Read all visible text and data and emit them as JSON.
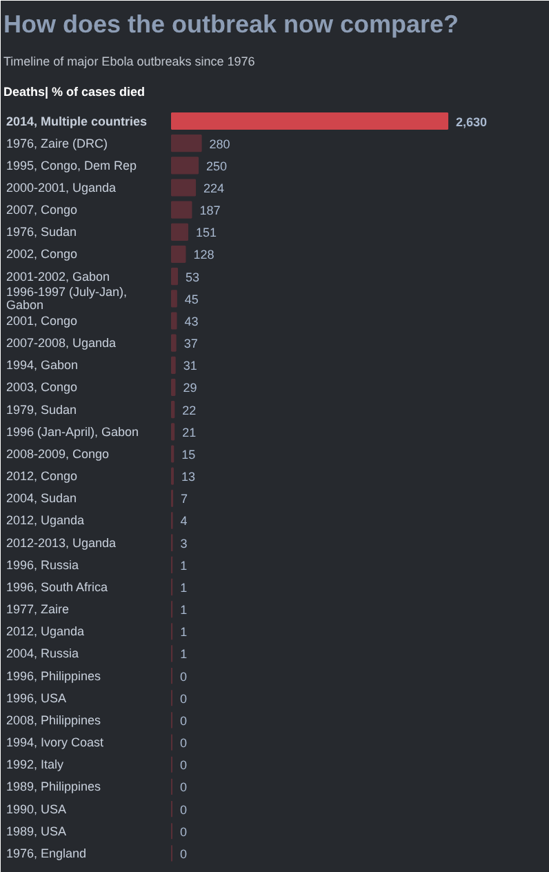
{
  "chart_data": {
    "type": "bar",
    "orientation": "horizontal",
    "title": "How does the outbreak now compare?",
    "subtitle": "Timeline of major Ebola outbreaks since 1976",
    "annotations": [
      "Deaths| % of cases died"
    ],
    "categories": [
      "2014, Multiple countries",
      "1976, Zaire (DRC)",
      "1995, Congo, Dem Rep",
      "2000-2001, Uganda",
      "2007, Congo",
      "1976, Sudan",
      "2002, Congo",
      "2001-2002, Gabon",
      "1996-1997 (July-Jan), Gabon",
      "2001, Congo",
      "2007-2008, Uganda",
      "1994, Gabon",
      "2003, Congo",
      "1979, Sudan",
      "1996 (Jan-April), Gabon",
      "2008-2009, Congo",
      "2012, Congo",
      "2004, Sudan",
      "2012, Uganda",
      "2012-2013, Uganda",
      "1996, Russia",
      "1996, South Africa",
      "1977, Zaire",
      "2012, Uganda",
      "2004, Russia",
      "1996, Philippines",
      "1996, USA",
      "2008, Philippines",
      "1994, Ivory Coast",
      "1992, Italy",
      "1989, Philippines",
      "1990, USA",
      "1989, USA",
      "1976, England"
    ],
    "values": [
      2630,
      280,
      250,
      224,
      187,
      151,
      128,
      53,
      45,
      43,
      37,
      31,
      29,
      22,
      21,
      15,
      13,
      7,
      4,
      3,
      1,
      1,
      1,
      1,
      1,
      0,
      0,
      0,
      0,
      0,
      0,
      0,
      0,
      0
    ],
    "colors": [
      "#d0454c",
      "#5a2f37",
      "#5a2f37",
      "#5a2f37",
      "#5a2f37",
      "#5a2f37",
      "#5a2f37",
      "#5a2f37",
      "#5a2f37",
      "#5a2f37",
      "#5a2f37",
      "#5a2f37",
      "#5a2f37",
      "#5a2f37",
      "#5a2f37",
      "#5a2f37",
      "#5a2f37",
      "#5a2f37",
      "#5a2f37",
      "#5a2f37",
      "#5a2f37",
      "#5a2f37",
      "#5a2f37",
      "#5a2f37",
      "#5a2f37",
      "#5a2f37",
      "#5a2f37",
      "#5a2f37",
      "#5a2f37",
      "#5a2f37",
      "#5a2f37",
      "#5a2f37",
      "#5a2f37",
      "#5a2f37"
    ],
    "value_labels": [
      "2,630",
      "280",
      "250",
      "224",
      "187",
      "151",
      "128",
      "53",
      "45",
      "43",
      "37",
      "31",
      "29",
      "22",
      "21",
      "15",
      "13",
      "7",
      "4",
      "3",
      "1",
      "1",
      "1",
      "1",
      "1",
      "0",
      "0",
      "0",
      "0",
      "0",
      "0",
      "0",
      "0",
      "0"
    ]
  }
}
